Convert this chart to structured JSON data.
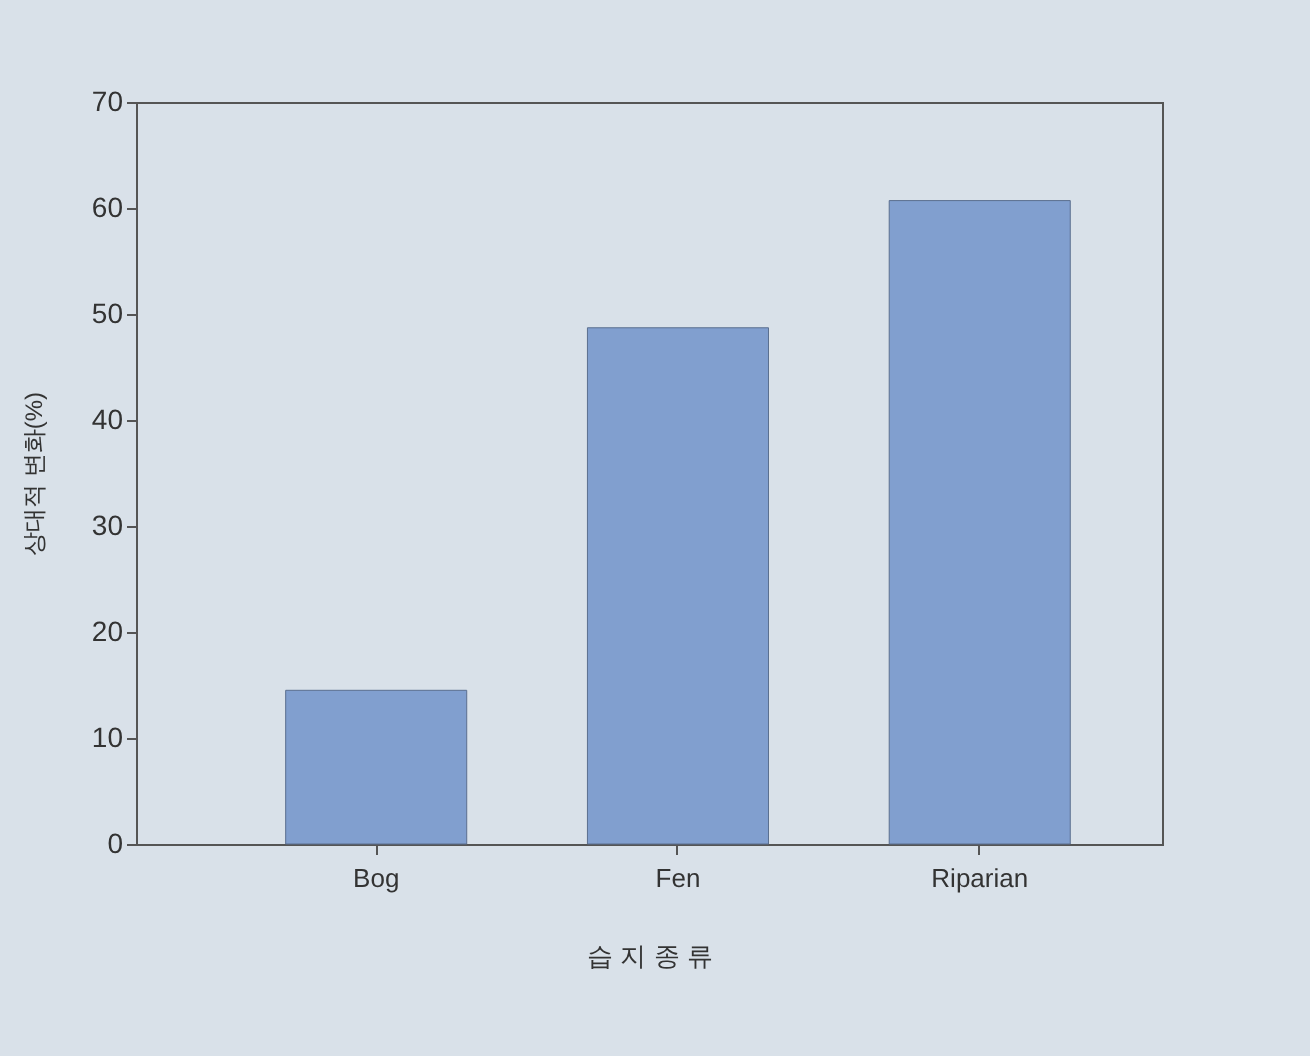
{
  "chart_data": {
    "type": "bar",
    "xlabel": "습 지 종 류",
    "ylabel": "상대적 변화(%)",
    "categories": [
      "Bog",
      "Fen",
      "Riparian"
    ],
    "values": [
      14.5,
      48.7,
      60.7
    ],
    "color": "#819fcf",
    "ylim": [
      0,
      70
    ],
    "yticks": [
      0,
      10,
      20,
      30,
      40,
      50,
      60,
      70
    ],
    "grid": false
  }
}
